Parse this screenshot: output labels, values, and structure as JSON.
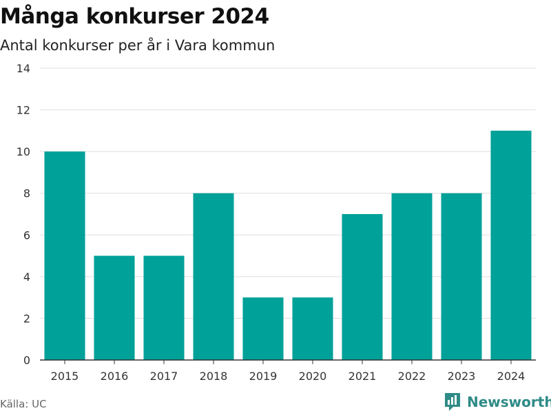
{
  "header": {
    "title": "Många konkurser 2024",
    "subtitle": "Antal konkurser per år i Vara kommun"
  },
  "footer": {
    "source": "Källa: UC",
    "brand": "Newsworthy"
  },
  "colors": {
    "bar": "#00a199",
    "brand": "#2e8b87"
  },
  "chart_data": {
    "type": "bar",
    "categories": [
      "2015",
      "2016",
      "2017",
      "2018",
      "2019",
      "2020",
      "2021",
      "2022",
      "2023",
      "2024"
    ],
    "values": [
      10,
      5,
      5,
      8,
      3,
      3,
      7,
      8,
      8,
      11
    ],
    "ylim": [
      0,
      14
    ],
    "yticks": [
      0,
      2,
      4,
      6,
      8,
      10,
      12,
      14
    ],
    "grid": true
  }
}
